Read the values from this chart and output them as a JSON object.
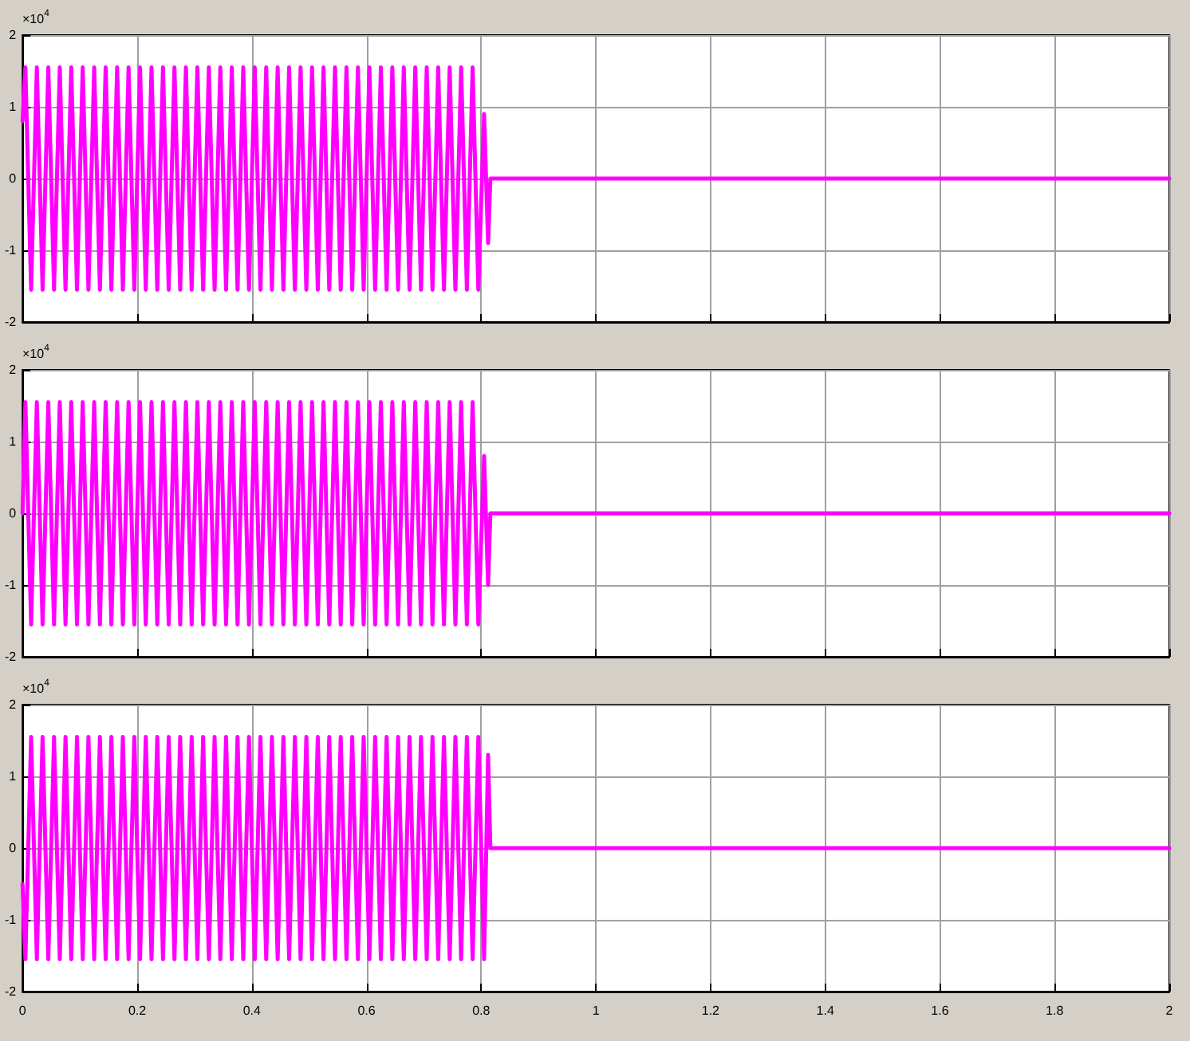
{
  "chart_data": [
    {
      "type": "line",
      "x": [
        0,
        0.005,
        0.015,
        0.025,
        0.035,
        0.045,
        0.055,
        0.065,
        0.075,
        0.085,
        0.095,
        0.105,
        0.115,
        0.125,
        0.135,
        0.145,
        0.155,
        0.165,
        0.175,
        0.185,
        0.195,
        0.205,
        0.215,
        0.225,
        0.235,
        0.245,
        0.255,
        0.265,
        0.275,
        0.285,
        0.295,
        0.305,
        0.315,
        0.325,
        0.335,
        0.345,
        0.355,
        0.365,
        0.375,
        0.385,
        0.395,
        0.405,
        0.415,
        0.425,
        0.435,
        0.445,
        0.455,
        0.465,
        0.475,
        0.485,
        0.495,
        0.505,
        0.515,
        0.525,
        0.535,
        0.545,
        0.555,
        0.565,
        0.575,
        0.585,
        0.595,
        0.605,
        0.615,
        0.625,
        0.635,
        0.645,
        0.655,
        0.665,
        0.675,
        0.685,
        0.695,
        0.705,
        0.715,
        0.725,
        0.735,
        0.745,
        0.755,
        0.765,
        0.775,
        0.785,
        0.795,
        0.805,
        0.812,
        0.816,
        2
      ],
      "series": [
        {
          "color": "#ff00ff",
          "values": [
            0.8,
            1.55,
            -1.55,
            1.55,
            -1.55,
            1.55,
            -1.55,
            1.55,
            -1.55,
            1.55,
            -1.55,
            1.55,
            -1.55,
            1.55,
            -1.55,
            1.55,
            -1.55,
            1.55,
            -1.55,
            1.55,
            -1.55,
            1.55,
            -1.55,
            1.55,
            -1.55,
            1.55,
            -1.55,
            1.55,
            -1.55,
            1.55,
            -1.55,
            1.55,
            -1.55,
            1.55,
            -1.55,
            1.55,
            -1.55,
            1.55,
            -1.55,
            1.55,
            -1.55,
            1.55,
            -1.55,
            1.55,
            -1.55,
            1.55,
            -1.55,
            1.55,
            -1.55,
            1.55,
            -1.55,
            1.55,
            -1.55,
            1.55,
            -1.55,
            1.55,
            -1.55,
            1.55,
            -1.55,
            1.55,
            -1.55,
            1.55,
            -1.55,
            1.55,
            -1.55,
            1.55,
            -1.55,
            1.55,
            -1.55,
            1.55,
            -1.55,
            1.55,
            -1.55,
            1.55,
            -1.55,
            1.55,
            -1.55,
            1.55,
            -1.55,
            1.55,
            -1.55,
            0.9,
            -0.9,
            0,
            0
          ]
        }
      ],
      "xlim": [
        0,
        2
      ],
      "ylim": [
        -2,
        2
      ],
      "xticks": [
        0,
        0.2,
        0.4,
        0.6,
        0.8,
        1,
        1.2,
        1.4,
        1.6,
        1.8,
        2
      ],
      "yticks": [
        -2,
        -1,
        0,
        1,
        2
      ],
      "grid": true,
      "tick_labels": "y",
      "annotations": [
        "×10$^{4}$"
      ]
    },
    {
      "type": "line",
      "x": [
        0,
        0.005,
        0.015,
        0.025,
        0.035,
        0.045,
        0.055,
        0.065,
        0.075,
        0.085,
        0.095,
        0.105,
        0.115,
        0.125,
        0.135,
        0.145,
        0.155,
        0.165,
        0.175,
        0.185,
        0.195,
        0.205,
        0.215,
        0.225,
        0.235,
        0.245,
        0.255,
        0.265,
        0.275,
        0.285,
        0.295,
        0.305,
        0.315,
        0.325,
        0.335,
        0.345,
        0.355,
        0.365,
        0.375,
        0.385,
        0.395,
        0.405,
        0.415,
        0.425,
        0.435,
        0.445,
        0.455,
        0.465,
        0.475,
        0.485,
        0.495,
        0.505,
        0.515,
        0.525,
        0.535,
        0.545,
        0.555,
        0.565,
        0.575,
        0.585,
        0.595,
        0.605,
        0.615,
        0.625,
        0.635,
        0.645,
        0.655,
        0.665,
        0.675,
        0.685,
        0.695,
        0.705,
        0.715,
        0.725,
        0.735,
        0.745,
        0.755,
        0.765,
        0.775,
        0.785,
        0.795,
        0.805,
        0.812,
        0.816,
        2
      ],
      "series": [
        {
          "color": "#ff00ff",
          "values": [
            0,
            1.55,
            -1.55,
            1.55,
            -1.55,
            1.55,
            -1.55,
            1.55,
            -1.55,
            1.55,
            -1.55,
            1.55,
            -1.55,
            1.55,
            -1.55,
            1.55,
            -1.55,
            1.55,
            -1.55,
            1.55,
            -1.55,
            1.55,
            -1.55,
            1.55,
            -1.55,
            1.55,
            -1.55,
            1.55,
            -1.55,
            1.55,
            -1.55,
            1.55,
            -1.55,
            1.55,
            -1.55,
            1.55,
            -1.55,
            1.55,
            -1.55,
            1.55,
            -1.55,
            1.55,
            -1.55,
            1.55,
            -1.55,
            1.55,
            -1.55,
            1.55,
            -1.55,
            1.55,
            -1.55,
            1.55,
            -1.55,
            1.55,
            -1.55,
            1.55,
            -1.55,
            1.55,
            -1.55,
            1.55,
            -1.55,
            1.55,
            -1.55,
            1.55,
            -1.55,
            1.55,
            -1.55,
            1.55,
            -1.55,
            1.55,
            -1.55,
            1.55,
            -1.55,
            1.55,
            -1.55,
            1.55,
            -1.55,
            1.55,
            -1.55,
            1.55,
            -1.55,
            0.8,
            -1,
            0,
            0
          ]
        }
      ],
      "xlim": [
        0,
        2
      ],
      "ylim": [
        -2,
        2
      ],
      "xticks": [
        0,
        0.2,
        0.4,
        0.6,
        0.8,
        1,
        1.2,
        1.4,
        1.6,
        1.8,
        2
      ],
      "yticks": [
        -2,
        -1,
        0,
        1,
        2
      ],
      "grid": true,
      "tick_labels": "y",
      "annotations": [
        "×10$^{4}$"
      ]
    },
    {
      "type": "line",
      "x": [
        0,
        0.005,
        0.015,
        0.025,
        0.035,
        0.045,
        0.055,
        0.065,
        0.075,
        0.085,
        0.095,
        0.105,
        0.115,
        0.125,
        0.135,
        0.145,
        0.155,
        0.165,
        0.175,
        0.185,
        0.195,
        0.205,
        0.215,
        0.225,
        0.235,
        0.245,
        0.255,
        0.265,
        0.275,
        0.285,
        0.295,
        0.305,
        0.315,
        0.325,
        0.335,
        0.345,
        0.355,
        0.365,
        0.375,
        0.385,
        0.395,
        0.405,
        0.415,
        0.425,
        0.435,
        0.445,
        0.455,
        0.465,
        0.475,
        0.485,
        0.495,
        0.505,
        0.515,
        0.525,
        0.535,
        0.545,
        0.555,
        0.565,
        0.575,
        0.585,
        0.595,
        0.605,
        0.615,
        0.625,
        0.635,
        0.645,
        0.655,
        0.665,
        0.675,
        0.685,
        0.695,
        0.705,
        0.715,
        0.725,
        0.735,
        0.745,
        0.755,
        0.765,
        0.775,
        0.785,
        0.795,
        0.805,
        0.812,
        0.816,
        2
      ],
      "series": [
        {
          "color": "#ff00ff",
          "values": [
            -0.5,
            -1.55,
            1.55,
            -1.55,
            1.55,
            -1.55,
            1.55,
            -1.55,
            1.55,
            -1.55,
            1.55,
            -1.55,
            1.55,
            -1.55,
            1.55,
            -1.55,
            1.55,
            -1.55,
            1.55,
            -1.55,
            1.55,
            -1.55,
            1.55,
            -1.55,
            1.55,
            -1.55,
            1.55,
            -1.55,
            1.55,
            -1.55,
            1.55,
            -1.55,
            1.55,
            -1.55,
            1.55,
            -1.55,
            1.55,
            -1.55,
            1.55,
            -1.55,
            1.55,
            -1.55,
            1.55,
            -1.55,
            1.55,
            -1.55,
            1.55,
            -1.55,
            1.55,
            -1.55,
            1.55,
            -1.55,
            1.55,
            -1.55,
            1.55,
            -1.55,
            1.55,
            -1.55,
            1.55,
            -1.55,
            1.55,
            -1.55,
            1.55,
            -1.55,
            1.55,
            -1.55,
            1.55,
            -1.55,
            1.55,
            -1.55,
            1.55,
            -1.55,
            1.55,
            -1.55,
            1.55,
            -1.55,
            1.55,
            -1.55,
            1.55,
            -1.55,
            1.55,
            -1.55,
            1.3,
            0,
            0
          ]
        }
      ],
      "xlim": [
        0,
        2
      ],
      "ylim": [
        -2,
        2
      ],
      "xticks": [
        0,
        0.2,
        0.4,
        0.6,
        0.8,
        1,
        1.2,
        1.4,
        1.6,
        1.8,
        2
      ],
      "yticks": [
        -2,
        -1,
        0,
        1,
        2
      ],
      "grid": true,
      "annotations": [
        "×10$^{4}$"
      ]
    }
  ]
}
